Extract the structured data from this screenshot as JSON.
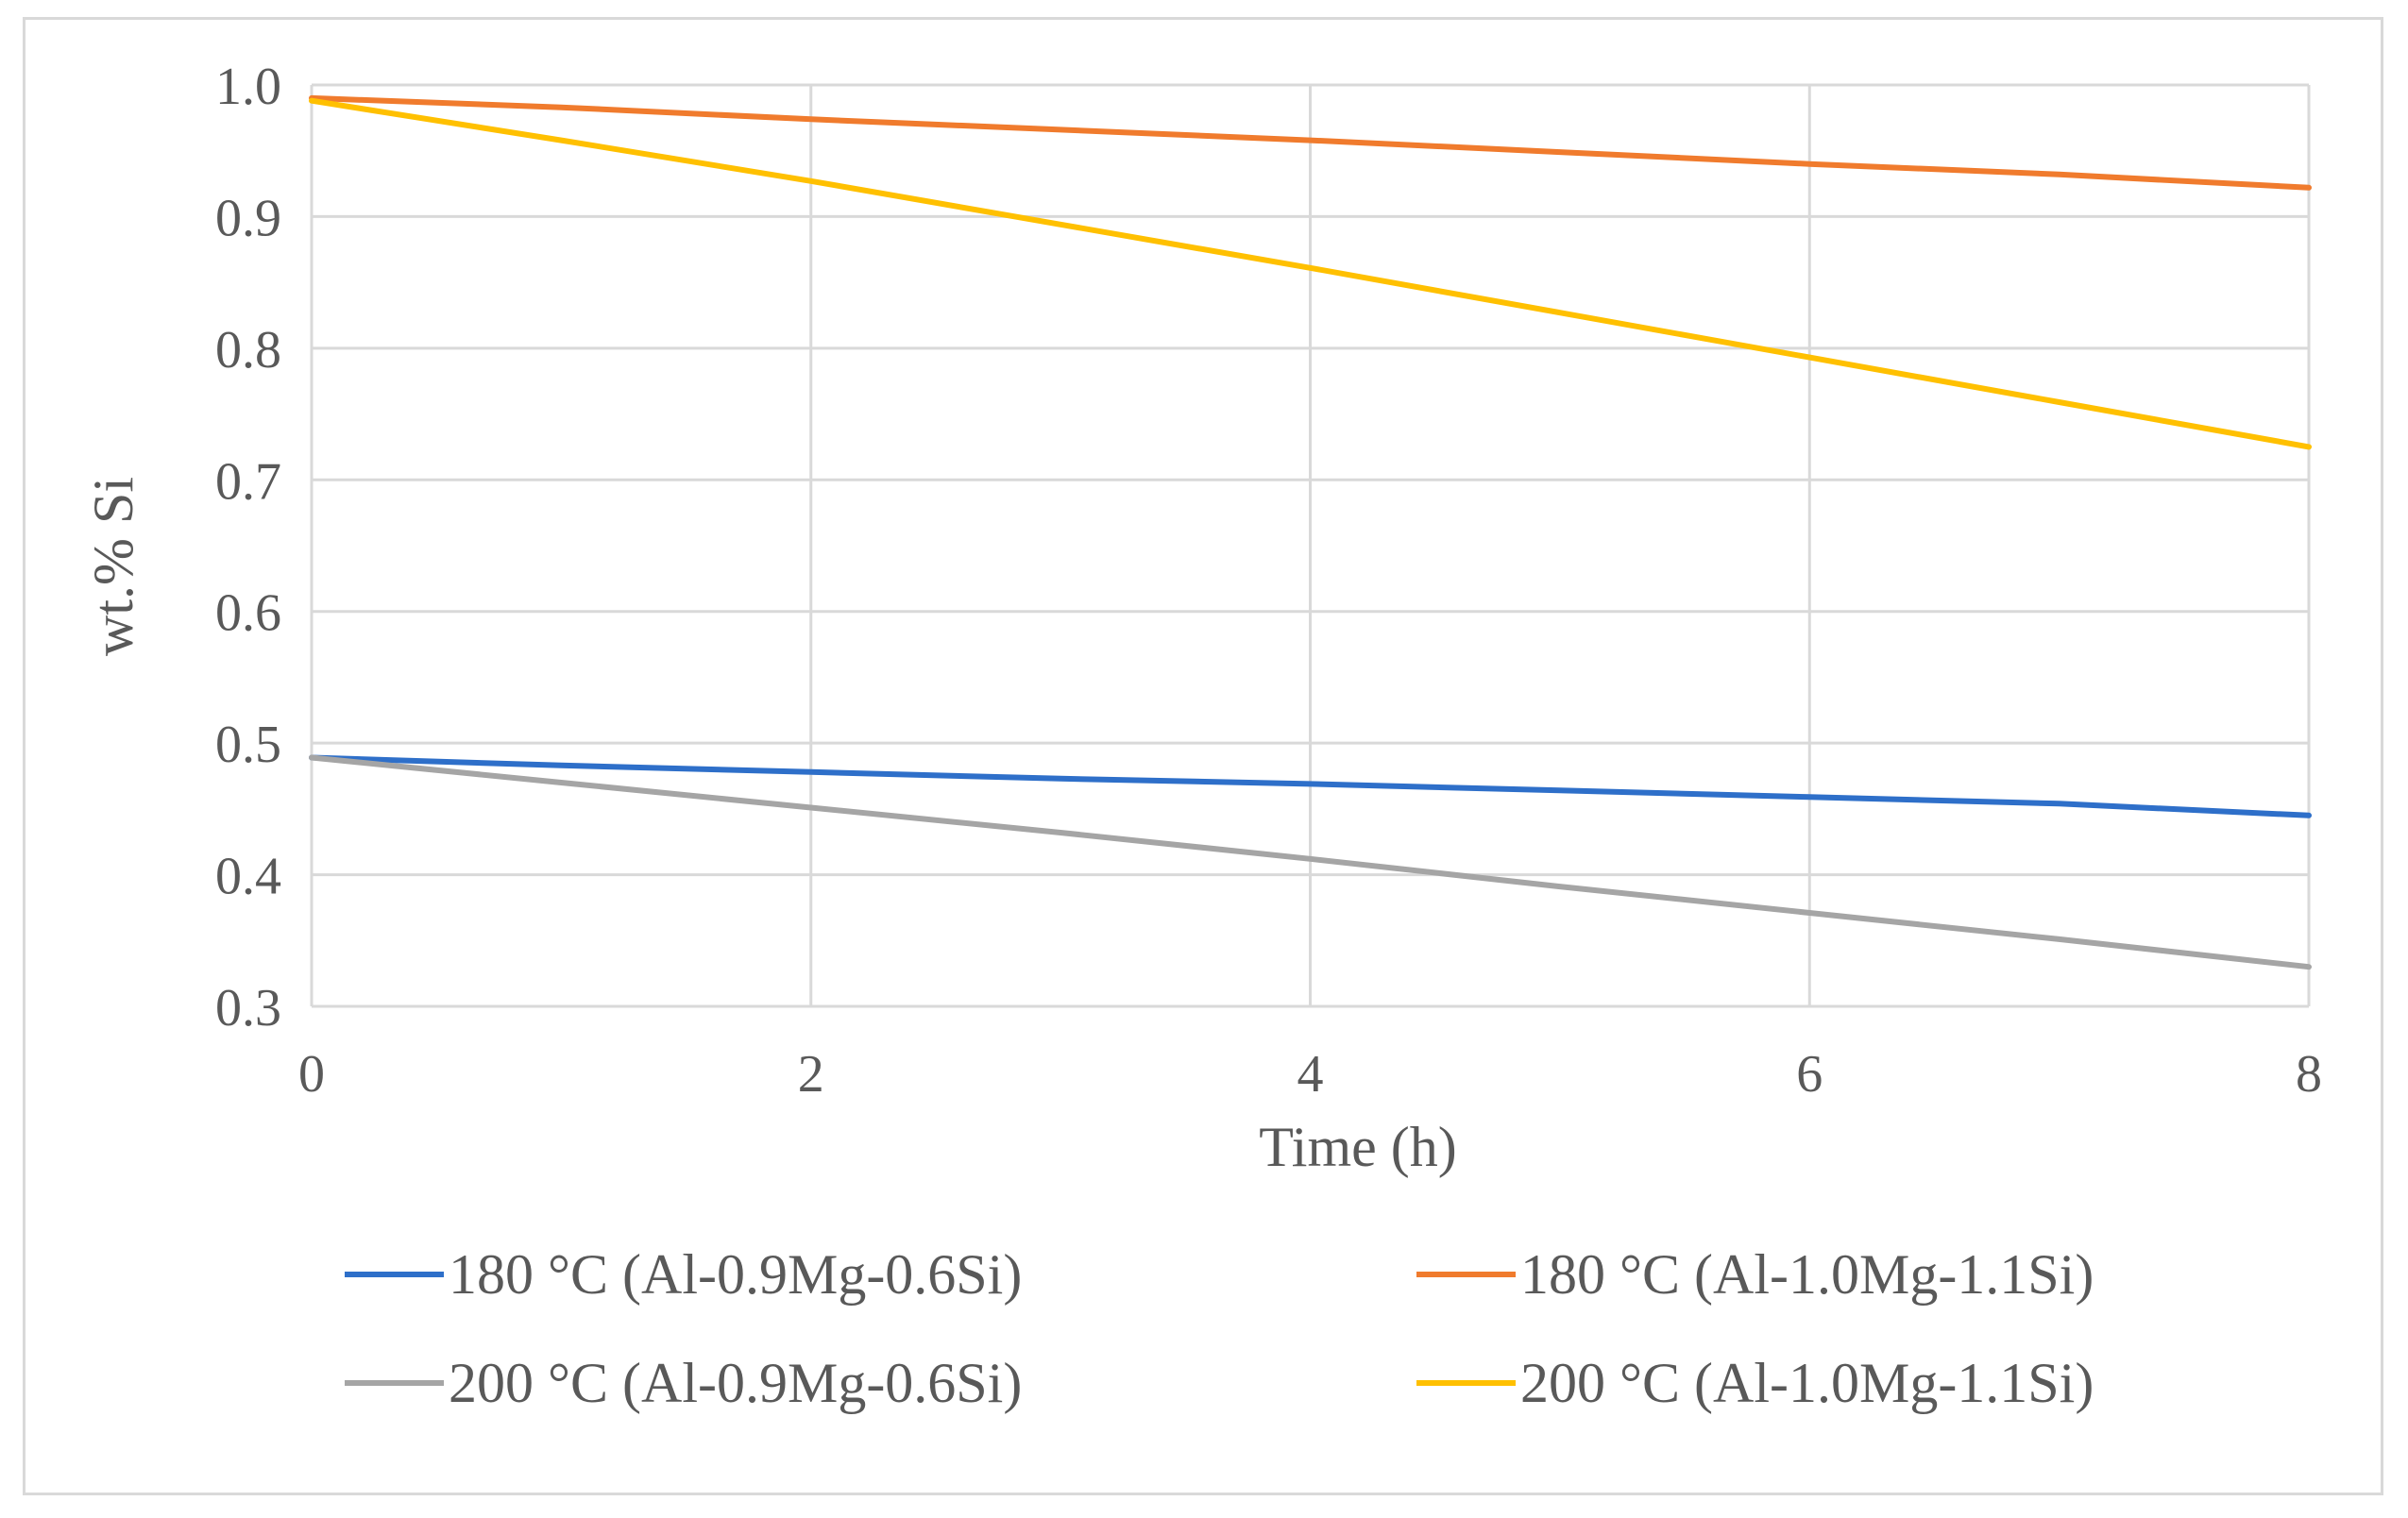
{
  "chart_data": {
    "type": "line",
    "title": "",
    "xlabel": "Time (h)",
    "ylabel": "wt.% Si",
    "xlim": [
      0,
      8
    ],
    "ylim": [
      0.3,
      1.0
    ],
    "x_ticks": [
      "0",
      "2",
      "4",
      "6",
      "8"
    ],
    "y_ticks": [
      "0.3",
      "0.4",
      "0.5",
      "0.6",
      "0.7",
      "0.8",
      "0.9",
      "1.0"
    ],
    "grid": true,
    "legend_position": "bottom",
    "x": [
      0,
      1,
      2,
      3,
      4,
      5,
      6,
      7,
      8
    ],
    "series": [
      {
        "name": "180 °C (Al-0.9Mg-0.6Si)",
        "color": "#2e6fc9",
        "values": [
          0.489,
          0.483,
          0.478,
          0.473,
          0.469,
          0.464,
          0.459,
          0.454,
          0.445
        ]
      },
      {
        "name": "180 °C (Al-1.0Mg-1.1Si)",
        "color": "#f07b2d",
        "values": [
          0.99,
          0.983,
          0.974,
          0.966,
          0.958,
          0.949,
          0.94,
          0.932,
          0.922
        ]
      },
      {
        "name": "200 °C (Al-0.9Mg-0.6Si)",
        "color": "#a5a5a5",
        "values": [
          0.489,
          0.47,
          0.451,
          0.432,
          0.412,
          0.391,
          0.371,
          0.351,
          0.33
        ]
      },
      {
        "name": "200 °C (Al-1.0Mg-1.1Si)",
        "color": "#ffc000",
        "values": [
          0.988,
          0.958,
          0.927,
          0.894,
          0.861,
          0.827,
          0.793,
          0.759,
          0.725
        ]
      }
    ]
  }
}
